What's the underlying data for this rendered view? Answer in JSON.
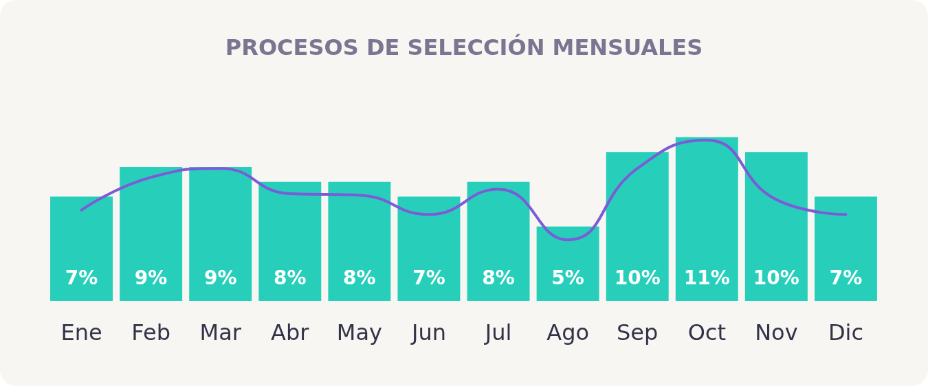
{
  "chart_data": {
    "type": "bar",
    "title": "PROCESOS DE SELECCIÓN MENSUALES",
    "categories": [
      "Ene",
      "Feb",
      "Mar",
      "Abr",
      "May",
      "Jun",
      "Jul",
      "Ago",
      "Sep",
      "Oct",
      "Nov",
      "Dic"
    ],
    "series": [
      {
        "color": "#27cfbb",
        "values": [
          7,
          9,
          9,
          8,
          8,
          7,
          8,
          5,
          10,
          11,
          10,
          7
        ],
        "value_labels": [
          "7%",
          "9%",
          "9%",
          "8%",
          "8%",
          "7%",
          "8%",
          "5%",
          "10%",
          "11%",
          "10%",
          "7%"
        ]
      },
      {
        "type": "line",
        "color": "#7b5cd6",
        "values": [
          6.1,
          8.3,
          8.9,
          7.2,
          7.1,
          5.8,
          7.5,
          4.1,
          8.9,
          10.8,
          6.8,
          5.8
        ]
      }
    ],
    "marker": "none"
  }
}
